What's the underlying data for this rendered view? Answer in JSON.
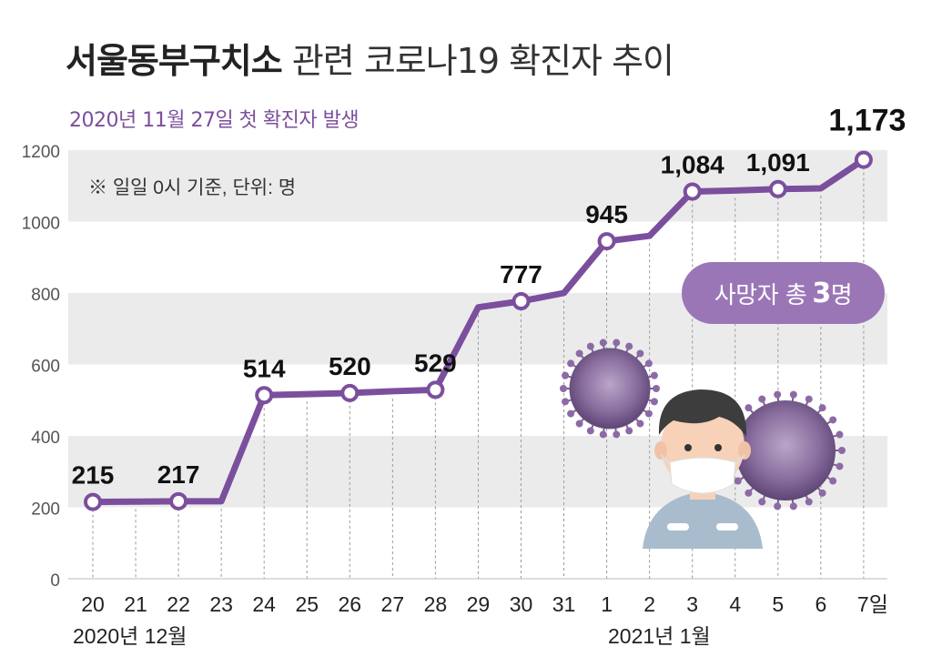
{
  "title": {
    "bold": "서울동부구치소",
    "rest": "관련 코로나19 확진자 추이"
  },
  "subtitle": "2020년 11월 27일 첫 확진자 발생",
  "note": "※ 일일 0시 기준, 단위: 명",
  "deaths_badge": {
    "prefix": "사망자 총",
    "count": "3",
    "suffix": "명"
  },
  "month_labels": {
    "dec": "2020년 12월",
    "jan": "2021년 1월"
  },
  "colors": {
    "line": "#7b4f9d",
    "band": "#ebebeb",
    "badge": "#9a76b7",
    "subtitle": "#7b4f9d"
  },
  "illustration": {
    "virus_icon": "coronavirus-icon",
    "person_icon": "masked-person-icon"
  },
  "chart_data": {
    "type": "line",
    "categories": [
      "20",
      "21",
      "22",
      "23",
      "24",
      "25",
      "26",
      "27",
      "28",
      "29",
      "30",
      "31",
      "1",
      "2",
      "3",
      "4",
      "5",
      "6",
      "7일"
    ],
    "values": [
      215,
      216,
      217,
      217,
      514,
      517,
      520,
      525,
      529,
      760,
      777,
      800,
      945,
      960,
      1084,
      1087,
      1091,
      1093,
      1173
    ],
    "value_labels": [
      "215",
      "",
      "217",
      "",
      "514",
      "",
      "520",
      "",
      "529",
      "",
      "777",
      "",
      "945",
      "",
      "1,084",
      "",
      "1,091",
      "",
      "1,173"
    ],
    "yticks": [
      "0",
      "200",
      "400",
      "600",
      "800",
      "1000",
      "1200"
    ],
    "ylim": [
      0,
      1200
    ],
    "grid": true,
    "title": "서울동부구치소 관련 코로나19 확진자 추이"
  }
}
